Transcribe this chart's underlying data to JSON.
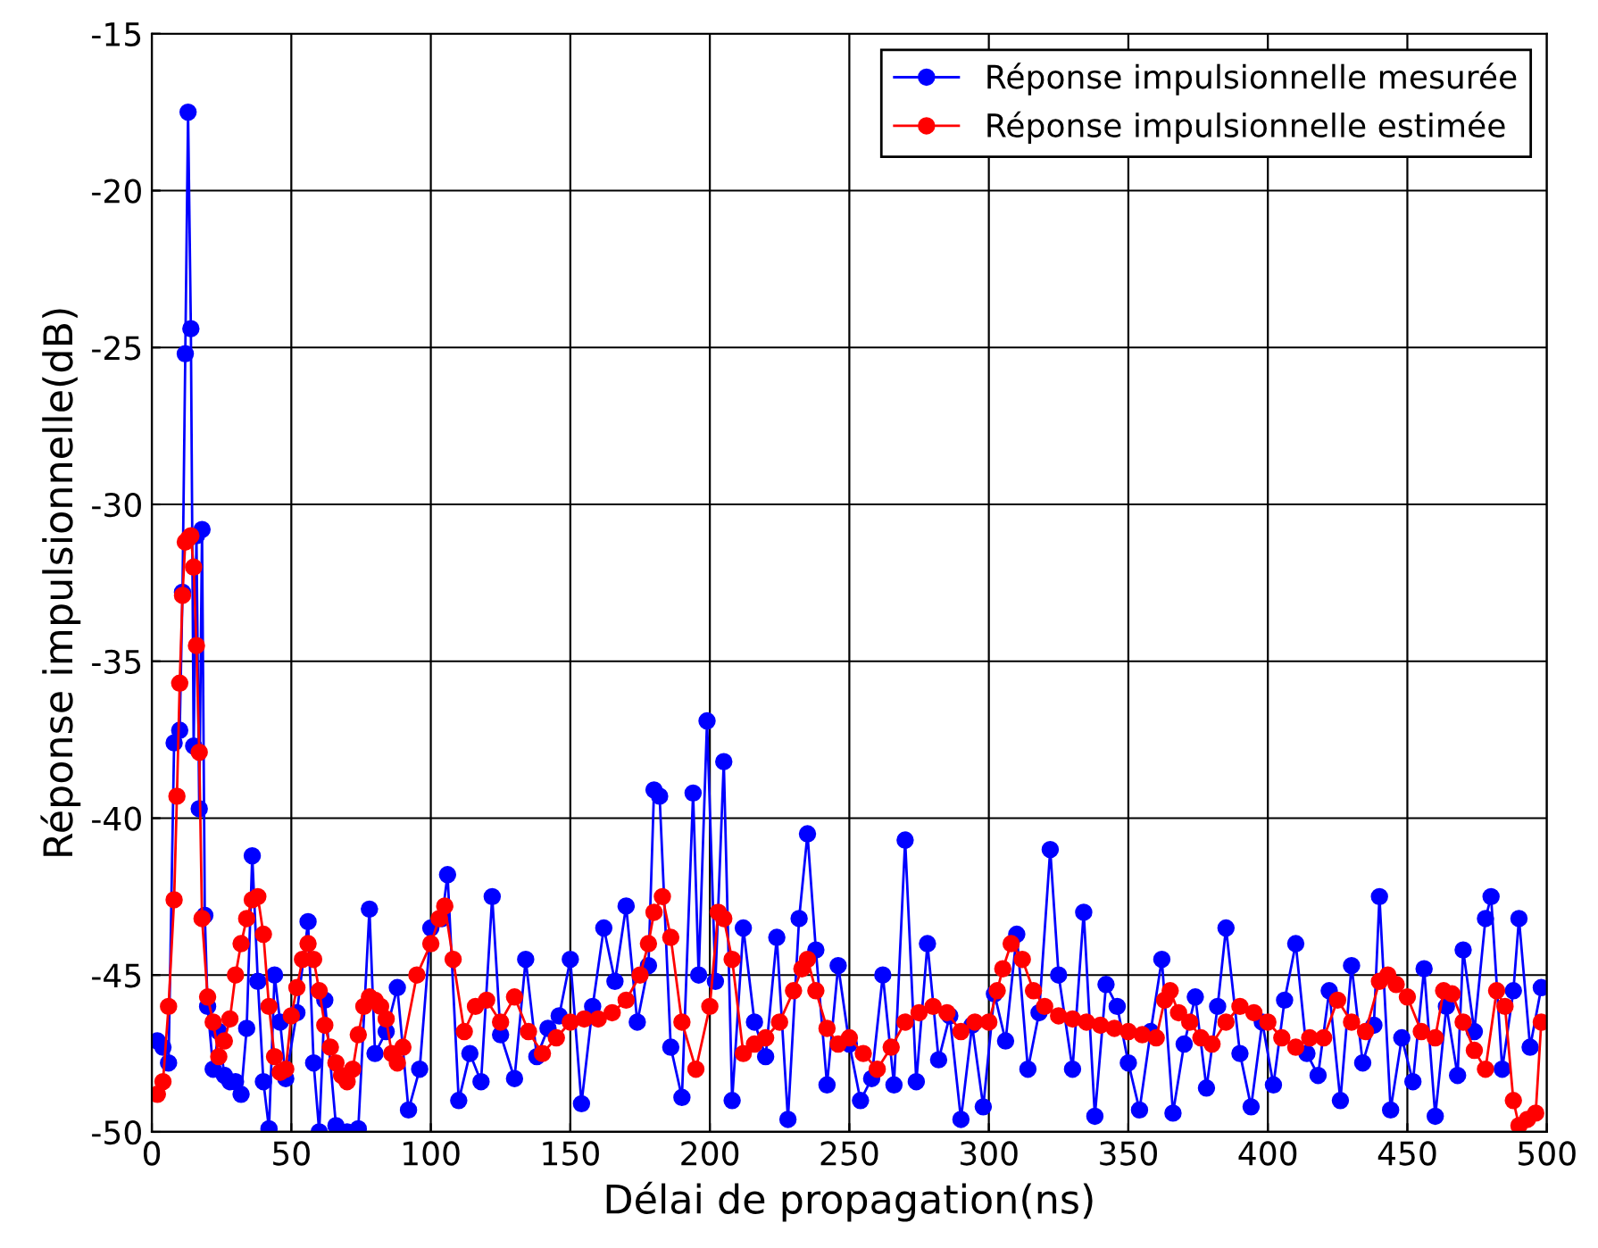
{
  "chart_data": {
    "type": "line",
    "xlabel": "Délai de propagation(ns)",
    "ylabel": "Réponse impulsionnelle(dB)",
    "xlim": [
      0,
      500
    ],
    "ylim": [
      -50,
      -15
    ],
    "xticks": [
      0,
      50,
      100,
      150,
      200,
      250,
      300,
      350,
      400,
      450,
      500
    ],
    "yticks": [
      -50,
      -45,
      -40,
      -35,
      -30,
      -25,
      -20,
      -15
    ],
    "grid": true,
    "legend": "top right",
    "marker": "circle",
    "line_style": "solid",
    "series": [
      {
        "name": "Réponse impulsionnelle mesurée",
        "color": "#0000ff",
        "x": [
          2,
          4,
          6,
          8,
          10,
          11,
          12,
          13,
          14,
          15,
          16,
          17,
          18,
          19,
          20,
          22,
          24,
          26,
          28,
          30,
          32,
          34,
          36,
          38,
          40,
          42,
          44,
          46,
          48,
          52,
          56,
          58,
          60,
          62,
          66,
          70,
          74,
          78,
          80,
          84,
          88,
          92,
          96,
          100,
          104,
          106,
          110,
          114,
          118,
          122,
          125,
          130,
          134,
          138,
          142,
          146,
          150,
          154,
          158,
          162,
          166,
          170,
          174,
          178,
          180,
          182,
          186,
          190,
          194,
          196,
          199,
          202,
          205,
          208,
          212,
          216,
          220,
          224,
          228,
          232,
          235,
          238,
          242,
          246,
          250,
          254,
          258,
          262,
          266,
          270,
          274,
          278,
          282,
          286,
          290,
          294,
          298,
          302,
          306,
          310,
          314,
          318,
          322,
          325,
          330,
          334,
          338,
          342,
          346,
          350,
          354,
          358,
          362,
          366,
          370,
          374,
          378,
          382,
          385,
          390,
          394,
          398,
          402,
          406,
          410,
          414,
          418,
          422,
          426,
          430,
          434,
          438,
          440,
          444,
          448,
          452,
          456,
          460,
          464,
          468,
          470,
          474,
          478,
          480,
          484,
          488,
          490,
          494,
          498
        ],
        "values": [
          -47.1,
          -47.3,
          -47.8,
          -37.6,
          -37.2,
          -32.8,
          -25.2,
          -17.5,
          -24.4,
          -37.7,
          -31.0,
          -39.7,
          -30.8,
          -43.1,
          -46.0,
          -48.0,
          -46.8,
          -48.2,
          -48.4,
          -48.4,
          -48.8,
          -46.7,
          -41.2,
          -45.2,
          -48.4,
          -49.9,
          -45.0,
          -46.5,
          -48.3,
          -46.2,
          -43.3,
          -47.8,
          -50.0,
          -45.8,
          -49.8,
          -50.0,
          -49.9,
          -42.9,
          -47.5,
          -46.8,
          -45.4,
          -49.3,
          -48.0,
          -43.5,
          -43.2,
          -41.8,
          -49.0,
          -47.5,
          -48.4,
          -42.5,
          -46.9,
          -48.3,
          -44.5,
          -47.6,
          -46.7,
          -46.3,
          -44.5,
          -49.1,
          -46.0,
          -43.5,
          -45.2,
          -42.8,
          -46.5,
          -44.7,
          -39.1,
          -39.3,
          -47.3,
          -48.9,
          -39.2,
          -45.0,
          -36.9,
          -45.2,
          -38.2,
          -49.0,
          -43.5,
          -46.5,
          -47.6,
          -43.8,
          -49.6,
          -43.2,
          -40.5,
          -44.2,
          -48.5,
          -44.7,
          -47.2,
          -49.0,
          -48.3,
          -45.0,
          -48.5,
          -40.7,
          -48.4,
          -44.0,
          -47.7,
          -46.3,
          -49.6,
          -46.6,
          -49.2,
          -45.6,
          -47.1,
          -43.7,
          -48.0,
          -46.2,
          -41.0,
          -45.0,
          -48.0,
          -43.0,
          -49.5,
          -45.3,
          -46.0,
          -47.8,
          -49.3,
          -46.8,
          -44.5,
          -49.4,
          -47.2,
          -45.7,
          -48.6,
          -46.0,
          -43.5,
          -47.5,
          -49.2,
          -46.5,
          -48.5,
          -45.8,
          -44.0,
          -47.5,
          -48.2,
          -45.5,
          -49.0,
          -44.7,
          -47.8,
          -46.6,
          -42.5,
          -49.3,
          -47.0,
          -48.4,
          -44.8,
          -49.5,
          -46.0,
          -48.2,
          -44.2,
          -46.8,
          -43.2,
          -42.5,
          -48.0,
          -45.5,
          -43.2,
          -47.3,
          -45.4
        ]
      },
      {
        "name": "Réponse impulsionnelle estimée",
        "color": "#ff0000",
        "x": [
          2,
          4,
          6,
          8,
          9,
          10,
          11,
          12,
          13,
          14,
          15,
          16,
          17,
          18,
          20,
          22,
          24,
          26,
          28,
          30,
          32,
          34,
          36,
          38,
          40,
          42,
          44,
          46,
          48,
          50,
          52,
          54,
          56,
          58,
          60,
          62,
          64,
          66,
          68,
          70,
          72,
          74,
          76,
          78,
          80,
          82,
          84,
          86,
          88,
          90,
          95,
          100,
          103,
          105,
          108,
          112,
          116,
          120,
          125,
          130,
          135,
          140,
          145,
          150,
          155,
          160,
          165,
          170,
          175,
          178,
          180,
          183,
          186,
          190,
          195,
          200,
          203,
          205,
          208,
          212,
          216,
          220,
          225,
          230,
          233,
          235,
          238,
          242,
          246,
          250,
          255,
          260,
          265,
          270,
          275,
          280,
          285,
          290,
          295,
          300,
          303,
          305,
          308,
          312,
          316,
          320,
          325,
          330,
          335,
          340,
          345,
          350,
          355,
          360,
          363,
          365,
          368,
          372,
          376,
          380,
          385,
          390,
          395,
          400,
          405,
          410,
          415,
          420,
          425,
          430,
          435,
          440,
          443,
          446,
          450,
          455,
          460,
          463,
          466,
          470,
          474,
          478,
          482,
          485,
          488,
          490,
          493,
          496,
          498
        ],
        "values": [
          -48.8,
          -48.4,
          -46.0,
          -42.6,
          -39.3,
          -35.7,
          -32.9,
          -31.2,
          -31.1,
          -31.0,
          -32.0,
          -34.5,
          -37.9,
          -43.2,
          -45.7,
          -46.5,
          -47.6,
          -47.1,
          -46.4,
          -45.0,
          -44.0,
          -43.2,
          -42.6,
          -42.5,
          -43.7,
          -46.0,
          -47.6,
          -48.1,
          -48.0,
          -46.3,
          -45.4,
          -44.5,
          -44.0,
          -44.5,
          -45.5,
          -46.6,
          -47.3,
          -47.8,
          -48.2,
          -48.4,
          -48.0,
          -46.9,
          -46.0,
          -45.7,
          -45.8,
          -46.0,
          -46.4,
          -47.5,
          -47.8,
          -47.3,
          -45.0,
          -44.0,
          -43.2,
          -42.8,
          -44.5,
          -46.8,
          -46.0,
          -45.8,
          -46.5,
          -45.7,
          -46.8,
          -47.5,
          -47.0,
          -46.5,
          -46.4,
          -46.4,
          -46.2,
          -45.8,
          -45.0,
          -44.0,
          -43.0,
          -42.5,
          -43.8,
          -46.5,
          -48.0,
          -46.0,
          -43.0,
          -43.2,
          -44.5,
          -47.5,
          -47.2,
          -47.0,
          -46.5,
          -45.5,
          -44.8,
          -44.5,
          -45.5,
          -46.7,
          -47.2,
          -47.0,
          -47.5,
          -48.0,
          -47.3,
          -46.5,
          -46.2,
          -46.0,
          -46.2,
          -46.8,
          -46.5,
          -46.5,
          -45.5,
          -44.8,
          -44.0,
          -44.5,
          -45.5,
          -46.0,
          -46.3,
          -46.4,
          -46.5,
          -46.6,
          -46.7,
          -46.8,
          -46.9,
          -47.0,
          -45.8,
          -45.5,
          -46.2,
          -46.5,
          -47.0,
          -47.2,
          -46.5,
          -46.0,
          -46.2,
          -46.5,
          -47.0,
          -47.3,
          -47.0,
          -47.0,
          -45.8,
          -46.5,
          -46.8,
          -45.2,
          -45.0,
          -45.3,
          -45.7,
          -46.8,
          -47.0,
          -45.5,
          -45.6,
          -46.5,
          -47.4,
          -48.0,
          -45.5,
          -46.0,
          -49.0,
          -49.8,
          -49.6,
          -49.4,
          -46.5
        ]
      }
    ]
  }
}
